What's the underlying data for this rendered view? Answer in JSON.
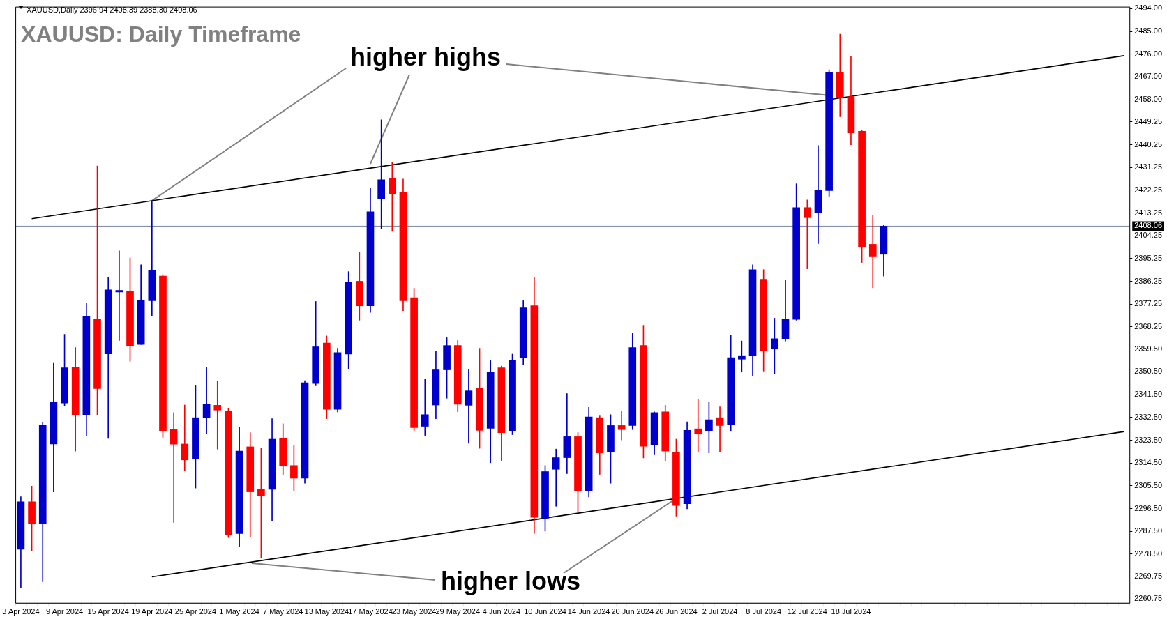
{
  "chart_data": {
    "type": "candlestick",
    "title": "XAUUSD: Daily Timeframe",
    "annotations": [
      "XAUUSD,Daily 2396.94 2408.39 2388.30 2408.06",
      {
        "text": "higher highs",
        "x": "19 Apr 2024",
        "y": 2418.1
      },
      {
        "text": "higher lows",
        "x": "26 Jun 2024",
        "y": 2300.5
      }
    ],
    "categories": [
      "3 Apr 2024",
      null,
      null,
      null,
      "9 Apr 2024",
      null,
      null,
      null,
      "15 Apr 2024",
      null,
      null,
      null,
      "19 Apr 2024",
      null,
      null,
      null,
      "25 Apr 2024",
      null,
      null,
      null,
      "1 May 2024",
      null,
      null,
      null,
      "7 May 2024",
      null,
      null,
      null,
      "13 May 2024",
      null,
      null,
      null,
      "17 May 2024",
      null,
      null,
      null,
      "23 May 2024",
      null,
      null,
      null,
      "29 May 2024",
      null,
      null,
      null,
      "4 Jun 2024",
      null,
      null,
      null,
      "10 Jun 2024",
      null,
      null,
      null,
      "14 Jun 2024",
      null,
      null,
      null,
      "20 Jun 2024",
      null,
      null,
      null,
      "26 Jun 2024",
      null,
      null,
      null,
      "2 Jul 2024",
      null,
      null,
      null,
      "8 Jul 2024",
      null,
      null,
      null,
      "12 Jul 2024",
      null,
      null,
      null,
      "18 Jul 2024",
      null,
      null,
      null,
      null,
      null,
      null,
      null,
      null,
      null,
      null,
      null,
      null,
      null,
      null,
      null,
      null,
      null,
      null,
      null,
      null,
      null,
      null,
      null,
      null,
      null
    ],
    "ohlc": [
      [
        2280.4,
        2301.2,
        2265.3,
        2299.2
      ],
      [
        2299.2,
        2305.4,
        2279.9,
        2290.7
      ],
      [
        2290.7,
        2330.5,
        2267.6,
        2329.3
      ],
      [
        2322.0,
        2353.9,
        2303.1,
        2338.5
      ],
      [
        2338.2,
        2365.3,
        2337.0,
        2352.1
      ],
      [
        2352.4,
        2360.1,
        2319.2,
        2333.6
      ],
      [
        2333.6,
        2377.5,
        2325.4,
        2372.4
      ],
      [
        2371.2,
        2431.8,
        2333.6,
        2343.9
      ],
      [
        2357.6,
        2387.8,
        2324.2,
        2382.9
      ],
      [
        2382.0,
        2398.3,
        2362.9,
        2382.7
      ],
      [
        2382.4,
        2395.5,
        2354.7,
        2360.9
      ],
      [
        2361.3,
        2392.8,
        2361.3,
        2378.9
      ],
      [
        2378.6,
        2417.9,
        2372.7,
        2390.6
      ],
      [
        2388.3,
        2388.9,
        2324.6,
        2327.3
      ],
      [
        2327.7,
        2334.4,
        2291.0,
        2321.9
      ],
      [
        2322.0,
        2337.4,
        2311.5,
        2315.7
      ],
      [
        2316.0,
        2345.0,
        2304.6,
        2332.4
      ],
      [
        2332.4,
        2352.4,
        2326.2,
        2337.6
      ],
      [
        2337.3,
        2346.8,
        2320.0,
        2335.4
      ],
      [
        2335.0,
        2336.2,
        2285.0,
        2286.1
      ],
      [
        2286.6,
        2328.5,
        2281.5,
        2319.2
      ],
      [
        2320.9,
        2326.5,
        2285.3,
        2303.1
      ],
      [
        2304.1,
        2320.5,
        2276.9,
        2301.5
      ],
      [
        2304.1,
        2332.0,
        2291.8,
        2323.9
      ],
      [
        2324.2,
        2330.0,
        2309.7,
        2313.5
      ],
      [
        2313.5,
        2321.6,
        2303.4,
        2308.5
      ],
      [
        2308.5,
        2347.0,
        2306.5,
        2346.2
      ],
      [
        2345.9,
        2378.3,
        2345.0,
        2360.4
      ],
      [
        2361.9,
        2364.7,
        2332.0,
        2335.7
      ],
      [
        2335.7,
        2359.8,
        2334.7,
        2358.1
      ],
      [
        2357.5,
        2390.1,
        2351.6,
        2385.8
      ],
      [
        2386.3,
        2397.7,
        2370.9,
        2376.6
      ],
      [
        2376.6,
        2423.0,
        2374.0,
        2413.7
      ],
      [
        2419.0,
        2450.1,
        2407.1,
        2426.4
      ],
      [
        2426.8,
        2433.3,
        2406.0,
        2420.7
      ],
      [
        2421.4,
        2426.7,
        2374.7,
        2378.6
      ],
      [
        2379.8,
        2383.5,
        2327.0,
        2328.5
      ],
      [
        2329.0,
        2347.5,
        2325.4,
        2333.6
      ],
      [
        2337.4,
        2358.6,
        2332.0,
        2351.3
      ],
      [
        2351.3,
        2364.0,
        2340.1,
        2360.9
      ],
      [
        2360.9,
        2362.9,
        2334.7,
        2337.7
      ],
      [
        2337.3,
        2351.6,
        2322.3,
        2343.0
      ],
      [
        2344.2,
        2359.8,
        2320.3,
        2327.4
      ],
      [
        2328.2,
        2355.0,
        2314.6,
        2350.4
      ],
      [
        2352.1,
        2352.8,
        2315.4,
        2326.5
      ],
      [
        2327.3,
        2357.5,
        2325.7,
        2355.2
      ],
      [
        2356.2,
        2378.6,
        2353.2,
        2375.8
      ],
      [
        2376.6,
        2387.8,
        2286.6,
        2293.0
      ],
      [
        2292.7,
        2313.5,
        2287.6,
        2311.1
      ],
      [
        2312.0,
        2320.0,
        2297.4,
        2316.6
      ],
      [
        2316.6,
        2341.9,
        2310.3,
        2324.9
      ],
      [
        2324.9,
        2326.5,
        2295.0,
        2303.5
      ],
      [
        2303.4,
        2336.5,
        2301.1,
        2332.7
      ],
      [
        2332.4,
        2333.1,
        2310.0,
        2318.5
      ],
      [
        2318.9,
        2333.6,
        2306.5,
        2329.3
      ],
      [
        2329.3,
        2335.0,
        2323.6,
        2327.7
      ],
      [
        2329.3,
        2365.8,
        2327.7,
        2360.1
      ],
      [
        2360.9,
        2368.9,
        2316.5,
        2321.1
      ],
      [
        2321.6,
        2334.7,
        2317.7,
        2334.4
      ],
      [
        2334.7,
        2337.3,
        2315.4,
        2319.2
      ],
      [
        2318.8,
        2323.9,
        2293.5,
        2297.7
      ],
      [
        2298.4,
        2330.8,
        2296.4,
        2327.4
      ],
      [
        2328.0,
        2339.7,
        2318.9,
        2326.2
      ],
      [
        2327.3,
        2338.5,
        2318.5,
        2331.6
      ],
      [
        2332.4,
        2336.7,
        2318.9,
        2329.3
      ],
      [
        2329.7,
        2365.0,
        2327.0,
        2356.1
      ],
      [
        2355.5,
        2362.7,
        2350.4,
        2356.9
      ],
      [
        2357.0,
        2392.8,
        2348.8,
        2390.9
      ],
      [
        2387.1,
        2390.9,
        2350.8,
        2359.0
      ],
      [
        2359.5,
        2371.7,
        2349.6,
        2363.6
      ],
      [
        2363.6,
        2386.6,
        2362.7,
        2371.4
      ],
      [
        2371.2,
        2424.8,
        2370.9,
        2415.4
      ],
      [
        2415.4,
        2418.4,
        2391.2,
        2411.4
      ],
      [
        2413.3,
        2439.9,
        2401.2,
        2422.2
      ],
      [
        2422.1,
        2469.8,
        2419.9,
        2468.8
      ],
      [
        2468.8,
        2483.9,
        2451.3,
        2458.7
      ],
      [
        2459.2,
        2475.2,
        2440.2,
        2444.9
      ],
      [
        2445.5,
        2445.8,
        2393.7,
        2400.0
      ],
      [
        2400.9,
        2412.2,
        2383.7,
        2396.2
      ],
      [
        2396.94,
        2408.39,
        2388.3,
        2408.06
      ],
      null,
      null,
      null,
      null,
      null,
      null,
      null,
      null,
      null,
      null,
      null,
      null,
      null,
      null,
      null,
      null,
      null,
      null,
      null,
      null,
      null,
      null
    ],
    "colors": [
      "#0000cd",
      "#ff0000",
      "#0000cd",
      "#0000cd",
      "#0000cd",
      "#ff0000",
      "#0000cd",
      "#ff0000",
      "#0000cd",
      "#0000cd",
      "#ff0000",
      "#0000cd",
      "#0000cd",
      "#ff0000",
      "#ff0000",
      "#ff0000",
      "#0000cd",
      "#0000cd",
      "#ff0000",
      "#ff0000",
      "#0000cd",
      "#ff0000",
      "#ff0000",
      "#0000cd",
      "#ff0000",
      "#ff0000",
      "#0000cd",
      "#0000cd",
      "#ff0000",
      "#0000cd",
      "#0000cd",
      "#ff0000",
      "#0000cd",
      "#0000cd",
      "#ff0000",
      "#ff0000",
      "#ff0000",
      "#0000cd",
      "#0000cd",
      "#0000cd",
      "#ff0000",
      "#0000cd",
      "#ff0000",
      "#0000cd",
      "#ff0000",
      "#0000cd",
      "#0000cd",
      "#ff0000",
      "#0000cd",
      "#0000cd",
      "#0000cd",
      "#ff0000",
      "#0000cd",
      "#ff0000",
      "#0000cd",
      "#ff0000",
      "#0000cd",
      "#ff0000",
      "#0000cd",
      "#ff0000",
      "#ff0000",
      "#0000cd",
      "#ff0000",
      "#0000cd",
      "#ff0000",
      "#0000cd",
      "#0000cd",
      "#0000cd",
      "#ff0000",
      "#0000cd",
      "#0000cd",
      "#0000cd",
      "#ff0000",
      "#0000cd",
      "#0000cd",
      "#ff0000",
      "#ff0000",
      "#ff0000",
      "#ff0000",
      "#0000cd",
      null,
      null,
      null,
      null,
      null,
      null,
      null,
      null,
      null,
      null,
      null,
      null,
      null,
      null,
      null,
      null,
      null,
      null,
      null,
      null,
      null,
      null
    ],
    "series": [
      {
        "type": "line",
        "color": "#000000",
        "values": [
          null,
          2411.0,
          null,
          null,
          null,
          null,
          null,
          null,
          null,
          null,
          null,
          null,
          null,
          null,
          null,
          null,
          null,
          null,
          null,
          null,
          null,
          null,
          null,
          null,
          null,
          null,
          null,
          null,
          null,
          null,
          null,
          null,
          null,
          null,
          null,
          null,
          null,
          null,
          null,
          null,
          null,
          null,
          null,
          null,
          null,
          null,
          null,
          null,
          null,
          null,
          null,
          null,
          null,
          null,
          null,
          null,
          null,
          null,
          null,
          null,
          null,
          null,
          null,
          null,
          null,
          null,
          null,
          null,
          null,
          null,
          null,
          null,
          null,
          null,
          null,
          null,
          null,
          null,
          null,
          null,
          null,
          null,
          null,
          null,
          null,
          null,
          null,
          null,
          null,
          null,
          null,
          null,
          null,
          null,
          null,
          null,
          null,
          null,
          null,
          null,
          null,
          2475.4
        ]
      },
      {
        "type": "line",
        "color": "#000000",
        "values": [
          null,
          null,
          null,
          null,
          null,
          null,
          null,
          null,
          null,
          null,
          null,
          null,
          2269.5,
          null,
          null,
          null,
          null,
          null,
          null,
          null,
          null,
          null,
          null,
          null,
          null,
          null,
          null,
          null,
          null,
          null,
          null,
          null,
          null,
          null,
          null,
          null,
          null,
          null,
          null,
          null,
          null,
          null,
          null,
          null,
          null,
          null,
          null,
          null,
          null,
          null,
          null,
          null,
          null,
          null,
          null,
          null,
          null,
          null,
          null,
          null,
          null,
          null,
          null,
          null,
          null,
          null,
          null,
          null,
          null,
          null,
          null,
          null,
          null,
          null,
          null,
          null,
          null,
          null,
          null,
          null,
          null,
          null,
          null,
          null,
          null,
          null,
          null,
          null,
          null,
          null,
          null,
          null,
          null,
          null,
          null,
          null,
          null,
          null,
          null,
          null,
          null,
          2326.9
        ]
      }
    ],
    "ylim": [
      2259.25,
      2494.75
    ],
    "yticks": [
      {
        "value": 2260.75,
        "label": "2260.75"
      },
      {
        "value": 2269.75,
        "label": "2269.75"
      },
      {
        "value": 2278.5,
        "label": "2278.50"
      },
      {
        "value": 2287.5,
        "label": "2287.50"
      },
      {
        "value": 2296.5,
        "label": "2296.50"
      },
      {
        "value": 2305.5,
        "label": "2305.50"
      },
      {
        "value": 2314.5,
        "label": "2314.50"
      },
      {
        "value": 2323.5,
        "label": "2323.50"
      },
      {
        "value": 2332.5,
        "label": "2332.50"
      },
      {
        "value": 2341.5,
        "label": "2341.50"
      },
      {
        "value": 2350.5,
        "label": "2350.50"
      },
      {
        "value": 2359.5,
        "label": "2359.50"
      },
      {
        "value": 2368.25,
        "label": "2368.25"
      },
      {
        "value": 2377.25,
        "label": "2377.25"
      },
      {
        "value": 2386.25,
        "label": "2386.25"
      },
      {
        "value": 2395.25,
        "label": "2395.25"
      },
      {
        "value": 2404.25,
        "label": "2404.25"
      },
      {
        "value": 2413.25,
        "label": "2413.25"
      },
      {
        "value": 2422.25,
        "label": "2422.25"
      },
      {
        "value": 2431.25,
        "label": "2431.25"
      },
      {
        "value": 2440.25,
        "label": "2440.25"
      },
      {
        "value": 2449.25,
        "label": "2449.25"
      },
      {
        "value": 2458,
        "label": "2458.00"
      },
      {
        "value": 2467,
        "label": "2467.00"
      },
      {
        "value": 2476,
        "label": "2476.00"
      },
      {
        "value": 2485,
        "label": "2485.00"
      },
      {
        "value": 2494,
        "label": "2494.00"
      }
    ],
    "ref_lines": [
      {
        "axis": "y",
        "value": 2408.06,
        "label": "2408.06",
        "color": "#7788a0"
      }
    ],
    "grid": false,
    "legend": false
  }
}
